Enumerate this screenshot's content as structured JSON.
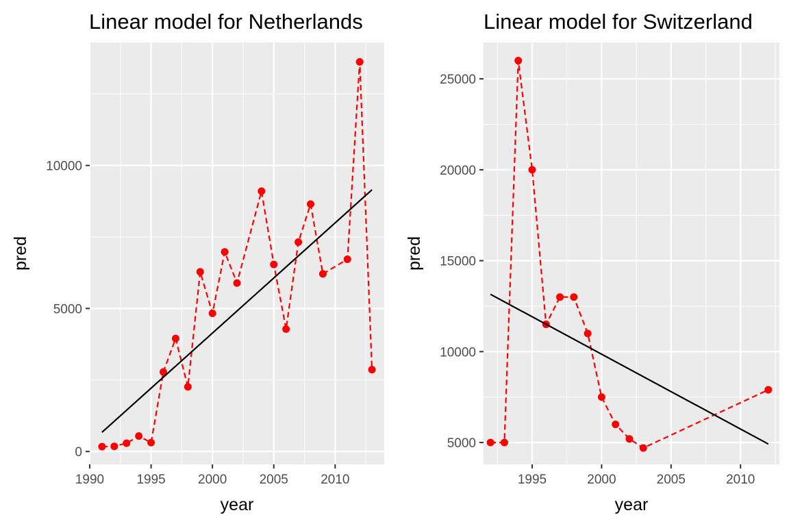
{
  "chart_data": [
    {
      "type": "line",
      "title": "Linear model for Netherlands",
      "xlabel": "year",
      "ylabel": "pred",
      "xlim": [
        1990,
        2014
      ],
      "ylim": [
        -450,
        14300
      ],
      "x_ticks": [
        1990,
        1995,
        2000,
        2005,
        2010
      ],
      "y_ticks": [
        0,
        5000,
        10000
      ],
      "x_tick_labels": [
        "1990",
        "1995",
        "2000",
        "2005",
        "2010"
      ],
      "y_tick_labels": [
        "0",
        "5000",
        "10000"
      ],
      "grid": true,
      "series": [
        {
          "style": "dashed-with-points",
          "color": "#ff0000",
          "x": [
            1991,
            1992,
            1993,
            1994,
            1995,
            1996,
            1997,
            1998,
            1999,
            2000,
            2001,
            2002,
            2004,
            2005,
            2006,
            2007,
            2008,
            2009,
            2011,
            2012,
            2013
          ],
          "y": [
            170,
            180,
            290,
            540,
            310,
            2780,
            3950,
            2260,
            6280,
            4830,
            6980,
            5890,
            9100,
            6540,
            4280,
            7320,
            8650,
            6210,
            6720,
            13620,
            2860
          ]
        },
        {
          "style": "solid-line",
          "color": "#000000",
          "x": [
            1991,
            2013
          ],
          "y": [
            670,
            9150
          ]
        }
      ]
    },
    {
      "type": "line",
      "title": "Linear model for Switzerland",
      "xlabel": "year",
      "ylabel": "pred",
      "xlim": [
        1991.5,
        2012.8
      ],
      "ylim": [
        3800,
        27000
      ],
      "x_ticks": [
        1995,
        2000,
        2005,
        2010
      ],
      "y_ticks": [
        5000,
        10000,
        15000,
        20000,
        25000
      ],
      "x_tick_labels": [
        "1995",
        "2000",
        "2005",
        "2010"
      ],
      "y_tick_labels": [
        "5000",
        "10000",
        "15000",
        "20000",
        "25000"
      ],
      "grid": true,
      "series": [
        {
          "style": "dashed-with-points",
          "color": "#ff0000",
          "x": [
            1992,
            1993,
            1994,
            1995,
            1996,
            1997,
            1998,
            1999,
            2000,
            2001,
            2002,
            2003,
            2012
          ],
          "y": [
            5000,
            5000,
            26000,
            20000,
            11500,
            13000,
            13000,
            11000,
            7500,
            6000,
            5200,
            4700,
            7900
          ]
        },
        {
          "style": "solid-line",
          "color": "#000000",
          "x": [
            1992,
            2012
          ],
          "y": [
            13150,
            4920
          ]
        }
      ]
    }
  ]
}
